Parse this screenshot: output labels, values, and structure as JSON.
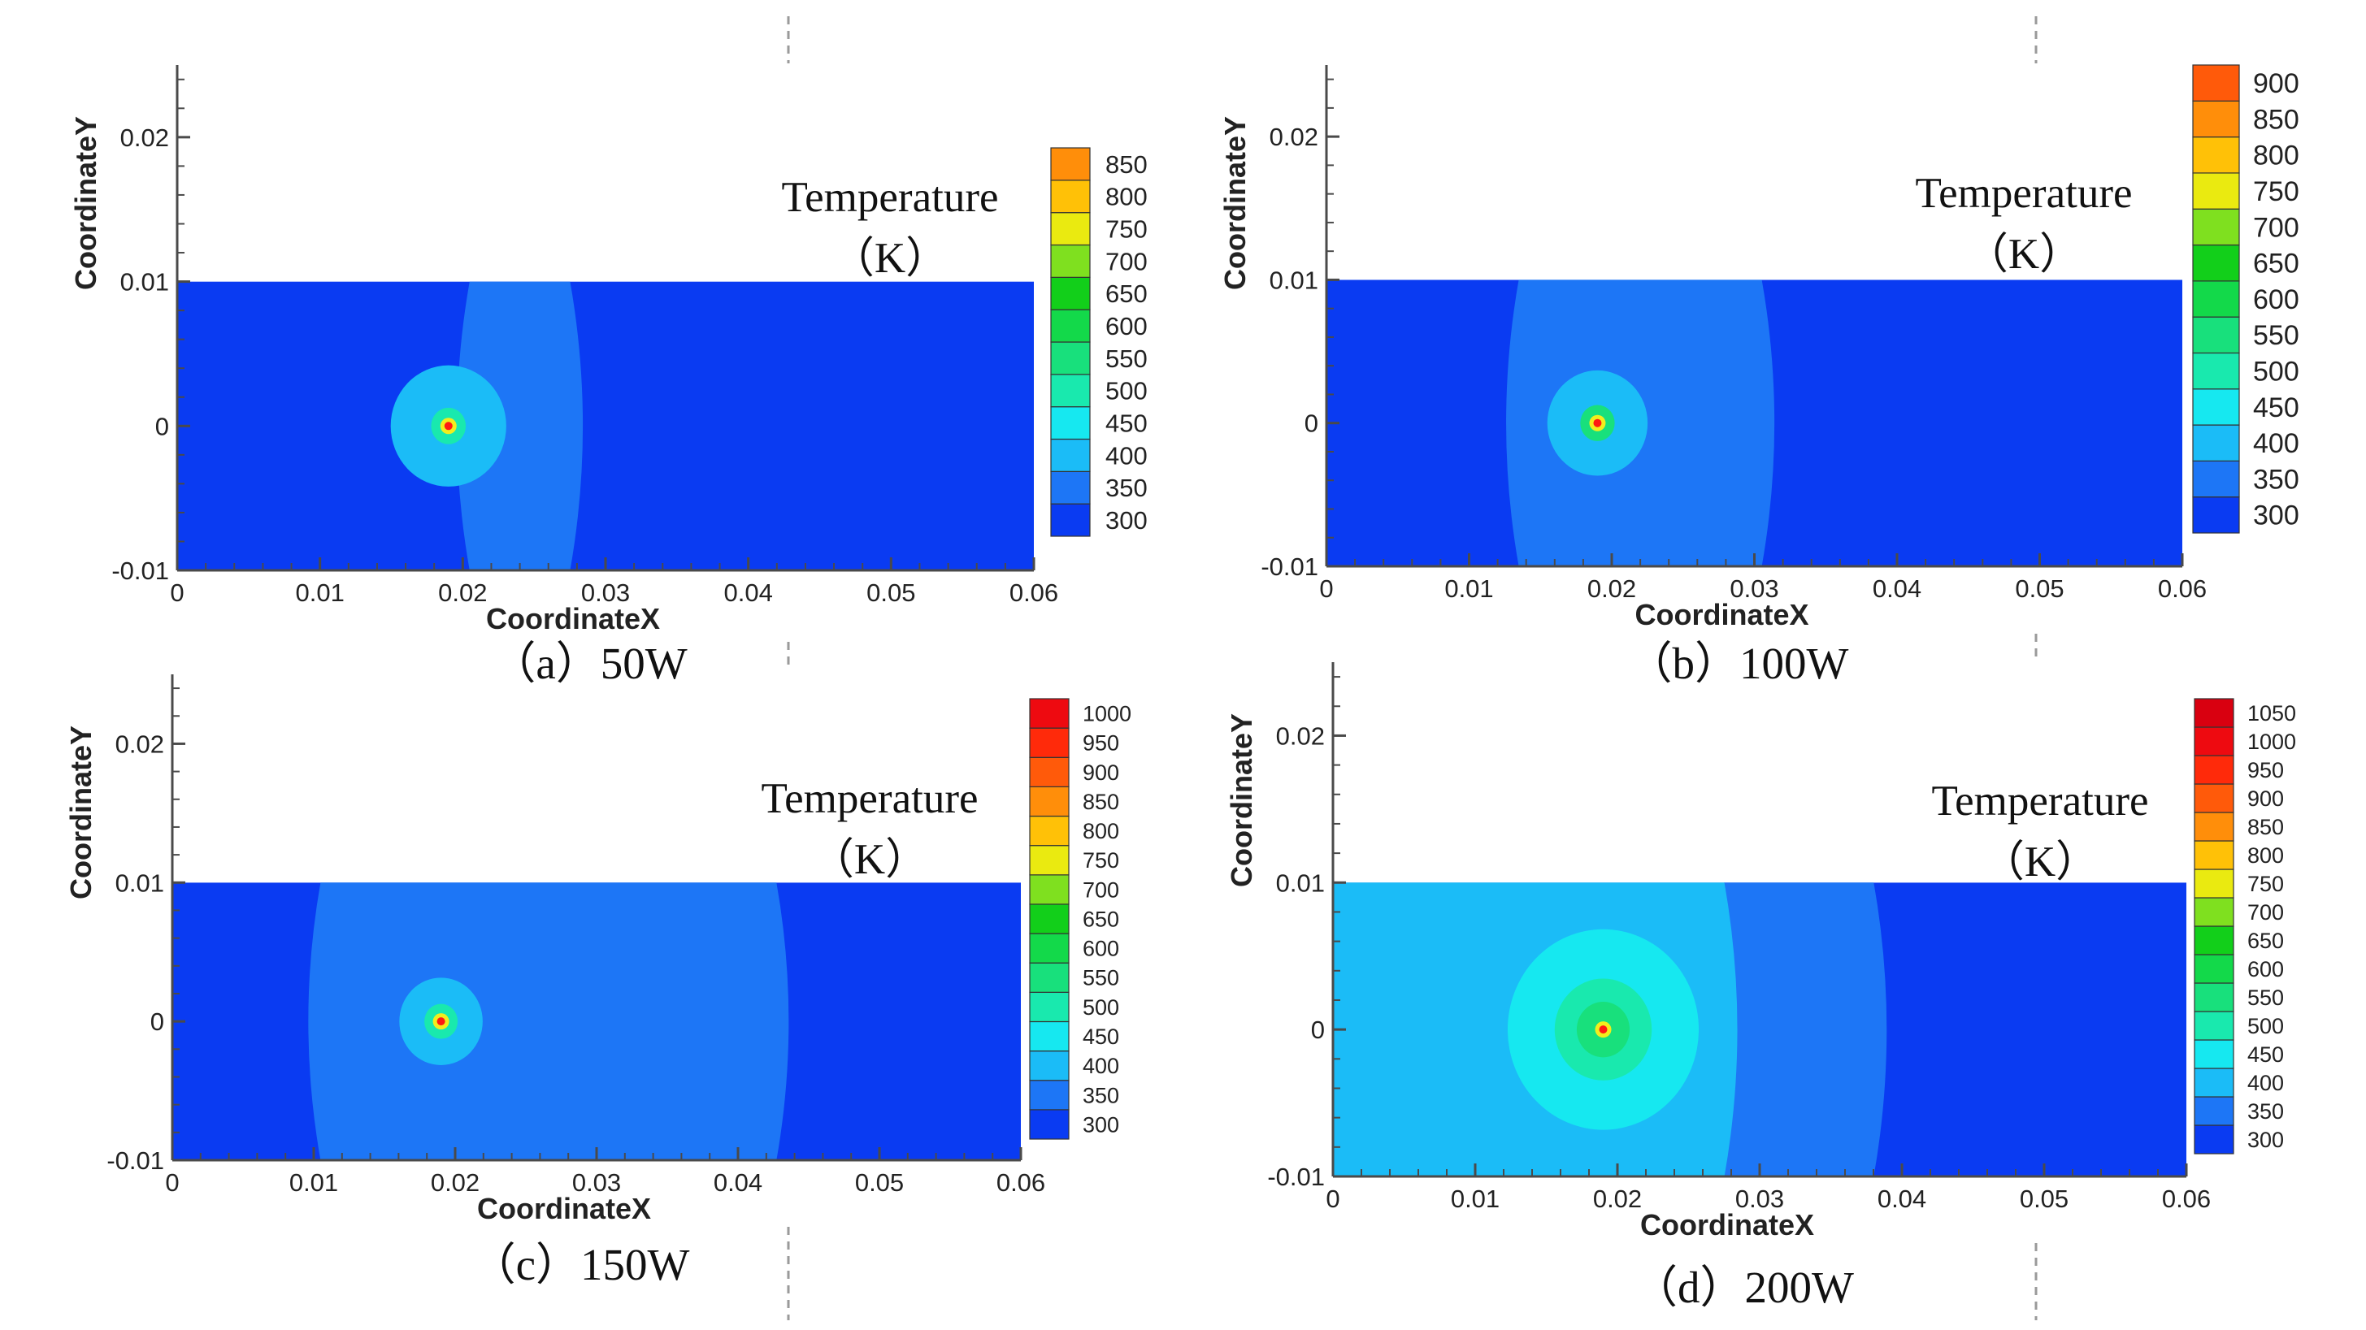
{
  "chart_data": [
    {
      "type": "heatmap",
      "caption": "（a）50W",
      "xlabel": "CoordinateX",
      "ylabel": "CoordinateY",
      "x_ticks": [
        "0",
        "0.01",
        "0.02",
        "0.03",
        "0.04",
        "0.05",
        "0.06"
      ],
      "y_ticks": [
        "-0.01",
        "0",
        "0.01",
        "0.02"
      ],
      "xlim": [
        0,
        0.06
      ],
      "ylim": [
        -0.01,
        0.025
      ],
      "domain_y": [
        -0.01,
        0.01
      ],
      "legend_title": [
        "Temperature",
        "（K）"
      ],
      "legend_levels": [
        "300",
        "350",
        "400",
        "450",
        "500",
        "550",
        "600",
        "650",
        "700",
        "750",
        "800",
        "850"
      ],
      "heat_source": {
        "x": 0.019,
        "y": 0.0
      },
      "contours": [
        {
          "level": "350",
          "x_left": 0.0205,
          "x_right": 0.0275
        },
        {
          "level": "400",
          "radius": 0.004
        },
        {
          "level": "500",
          "radius": 0.0012
        }
      ]
    },
    {
      "type": "heatmap",
      "caption": "（b）100W",
      "xlabel": "CoordinateX",
      "ylabel": "CoordinateY",
      "x_ticks": [
        "0",
        "0.01",
        "0.02",
        "0.03",
        "0.04",
        "0.05",
        "0.06"
      ],
      "y_ticks": [
        "-0.01",
        "0",
        "0.01",
        "0.02"
      ],
      "xlim": [
        0,
        0.06
      ],
      "ylim": [
        -0.01,
        0.025
      ],
      "domain_y": [
        -0.01,
        0.01
      ],
      "legend_title": [
        "Temperature",
        "（K）"
      ],
      "legend_levels": [
        "300",
        "350",
        "400",
        "450",
        "500",
        "550",
        "600",
        "650",
        "700",
        "750",
        "800",
        "850",
        "900"
      ],
      "heat_source": {
        "x": 0.019,
        "y": 0.0
      },
      "contours": [
        {
          "level": "350",
          "x_left": 0.0135,
          "x_right": 0.0305
        },
        {
          "level": "400",
          "radius": 0.0035
        },
        {
          "level": "550",
          "radius": 0.0012
        }
      ]
    },
    {
      "type": "heatmap",
      "caption": "（c）150W",
      "xlabel": "CoordinateX",
      "ylabel": "CoordinateY",
      "x_ticks": [
        "0",
        "0.01",
        "0.02",
        "0.03",
        "0.04",
        "0.05",
        "0.06"
      ],
      "y_ticks": [
        "-0.01",
        "0",
        "0.01",
        "0.02"
      ],
      "xlim": [
        0,
        0.06
      ],
      "ylim": [
        -0.01,
        0.025
      ],
      "domain_y": [
        -0.01,
        0.01
      ],
      "legend_title": [
        "Temperature",
        "（K）"
      ],
      "legend_levels": [
        "300",
        "350",
        "400",
        "450",
        "500",
        "550",
        "600",
        "650",
        "700",
        "750",
        "800",
        "850",
        "900",
        "950",
        "1000"
      ],
      "heat_source": {
        "x": 0.019,
        "y": 0.0
      },
      "contours": [
        {
          "level": "350",
          "x_left": 0.0105,
          "x_right": 0.0427
        },
        {
          "level": "400",
          "radius": 0.003
        },
        {
          "level": "500",
          "radius": 0.0012
        }
      ]
    },
    {
      "type": "heatmap",
      "caption": "（d）200W",
      "xlabel": "CoordinateX",
      "ylabel": "CoordinateY",
      "x_ticks": [
        "0",
        "0.01",
        "0.02",
        "0.03",
        "0.04",
        "0.05",
        "0.06"
      ],
      "y_ticks": [
        "-0.01",
        "0",
        "0.01",
        "0.02"
      ],
      "xlim": [
        0,
        0.06
      ],
      "ylim": [
        -0.01,
        0.025
      ],
      "domain_y": [
        -0.01,
        0.01
      ],
      "legend_title": [
        "Temperature",
        "（K）"
      ],
      "legend_levels": [
        "300",
        "350",
        "400",
        "450",
        "500",
        "550",
        "600",
        "650",
        "700",
        "750",
        "800",
        "850",
        "900",
        "950",
        "1000",
        "1050"
      ],
      "heat_source": {
        "x": 0.019,
        "y": 0.0
      },
      "contours": [
        {
          "level": "350",
          "x_left": 0.0275,
          "x_right": 0.038
        },
        {
          "level": "400",
          "x_left": 0.0,
          "x_right": 0.0275
        },
        {
          "level": "450",
          "radius": 0.0065
        },
        {
          "level": "500",
          "radius": 0.0033
        },
        {
          "level": "550",
          "radius": 0.0018
        }
      ]
    }
  ],
  "colors": {
    "palette": [
      "#0a3bf2",
      "#1d76f6",
      "#1bbcf7",
      "#16e8f0",
      "#19e9ae",
      "#18e07c",
      "#13d94a",
      "#12cf1a",
      "#7fe01f",
      "#eaea10",
      "#ffc107",
      "#ff8e0a",
      "#ff5a0a",
      "#ff2a0a",
      "#ee0a10",
      "#d90010"
    ],
    "axis": "#4a4a4a",
    "hot_core": "#ff1a12",
    "hot_ring": "#f2ee1d"
  }
}
